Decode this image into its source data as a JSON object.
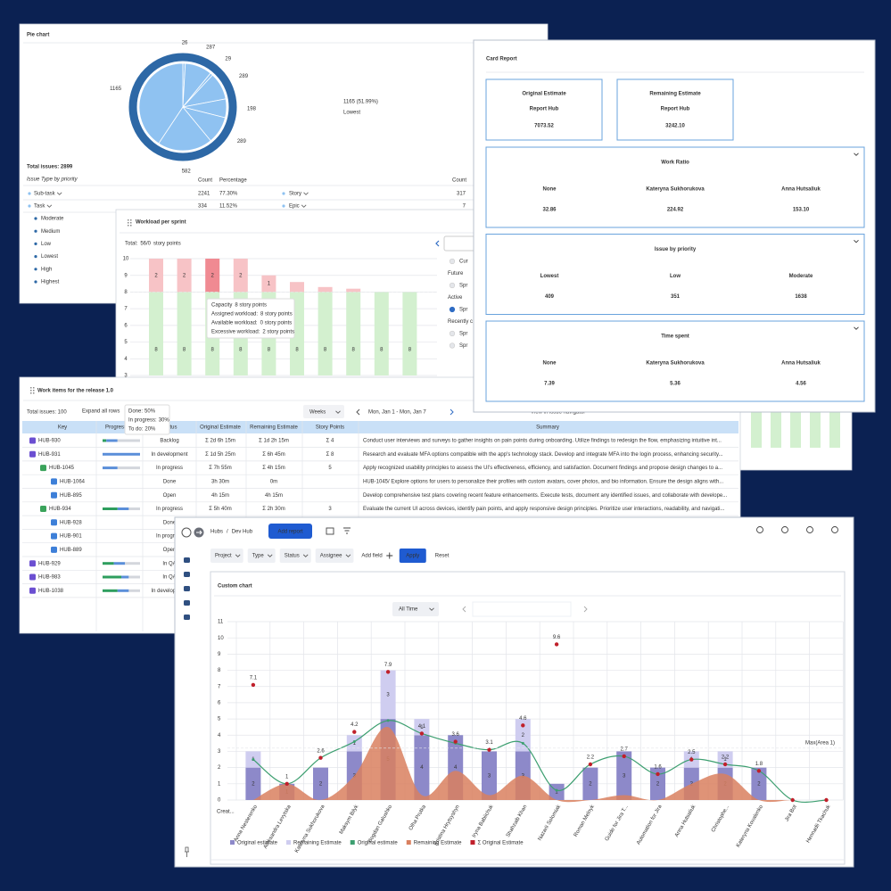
{
  "chart_data": [
    {
      "type": "pie",
      "title": "Pie chart",
      "values": [
        26,
        287,
        29,
        289,
        198,
        289,
        582,
        1165
      ],
      "color": "#8fc2f1",
      "ring_color": "#2d68a6",
      "label_color": "#3a6fb0",
      "highlight": {
        "label": "1165 (51.99%)",
        "name": "Lowest"
      }
    },
    {
      "type": "bar",
      "title": "Workload per sprint",
      "subtitle": [
        "Total:",
        "56/0",
        "story points"
      ],
      "categories": [
        null,
        null,
        null,
        null,
        null,
        null,
        null,
        null,
        null,
        null
      ],
      "series": [
        {
          "name": "Assigned workload",
          "color": "#d3f0cf",
          "label_color": "#5aa65a",
          "values": [
            8,
            8,
            8,
            8,
            8,
            8,
            8,
            8,
            8,
            8
          ]
        },
        {
          "name": "Excessive workload",
          "color": "#f7c3c6",
          "label_color": "#c0555d",
          "values": [
            2,
            2,
            2,
            2,
            1,
            0.6,
            0.3,
            0.2,
            0,
            0
          ]
        }
      ],
      "selected": 2,
      "selected_color": "#f08a92",
      "ylim": [
        3,
        10
      ],
      "yticks": [
        3,
        4,
        5,
        6,
        7,
        8,
        9,
        10
      ],
      "capacity": 8
    },
    {
      "type": "combo",
      "title": "Custom chart",
      "categories": [
        "Anna Nesterenko",
        "Aleksandra Levytska",
        "Kateryna Sukhorukova",
        "Maksym Bilyk",
        "Bogdan Galushko",
        "Olha Prutka",
        "Kristina Hrytsyshyn",
        "Iryna Babiichuk",
        "Shahzaib Khan",
        "Nazarii Solomiak",
        "Roman Melnyk",
        "Guide for Jira T...",
        "Automation for Jira",
        "Anna Hutsaliuk",
        "Christophe...",
        "Kateryna Kovalenko",
        "Jira Bot",
        "Hennadii Tkachuk"
      ],
      "xlabel": "Creat...",
      "ylim": [
        0,
        11
      ],
      "yticks": [
        0,
        1,
        2,
        3,
        4,
        5,
        6,
        7,
        8,
        9,
        10,
        11
      ],
      "grid": true,
      "max_line": {
        "value": 3.2,
        "label": "Max(Area 1)",
        "color": "#8fd3d8"
      },
      "series": [
        {
          "name": "Original estimate",
          "kind": "bar",
          "color": "#8d89c9",
          "values": [
            2,
            1,
            2,
            3,
            5,
            4,
            4,
            3,
            3,
            1,
            2,
            3,
            2,
            2,
            2,
            2,
            0,
            0
          ]
        },
        {
          "name": "Remaining Estimate",
          "kind": "bar",
          "color": "#cfcdf0",
          "values": [
            1,
            0,
            0,
            1,
            3,
            1,
            0,
            0,
            2,
            0,
            0,
            0,
            0,
            1,
            1,
            0,
            0,
            0
          ]
        },
        {
          "name": "Original estimate",
          "kind": "line",
          "color": "#3d9f70",
          "values": [
            2.5,
            1,
            2.6,
            3.6,
            4.9,
            4.1,
            3.5,
            3.1,
            3.5,
            0.6,
            2.2,
            2.7,
            1.6,
            2.5,
            2.2,
            1.8,
            0,
            0
          ]
        },
        {
          "name": "Remaining Estimate",
          "kind": "area",
          "color": "#d9805f",
          "values": [
            0,
            1,
            0,
            1.5,
            4.5,
            0.3,
            1.8,
            0.3,
            1.5,
            0,
            0,
            0.3,
            0,
            1,
            1.6,
            0,
            0,
            0
          ]
        },
        {
          "name": "Σ Original Estimate",
          "kind": "dots",
          "color": "#c0202b",
          "values": [
            7.1,
            1,
            2.6,
            4.2,
            7.9,
            4.1,
            3.6,
            3.1,
            4.6,
            9.6,
            2.2,
            2.7,
            1.6,
            2.5,
            2.2,
            1.8,
            0,
            0
          ]
        }
      ]
    }
  ],
  "pie_panel": {
    "total": "Total issues: 2899",
    "subtitle": "Issue Type by priority",
    "columns": [
      "Count",
      "Percentage"
    ],
    "right_columns": [
      "Count"
    ],
    "rows": [
      {
        "name": "Sub-task",
        "count": "2241",
        "pct": "77.30%"
      },
      {
        "name": "Task",
        "count": "334",
        "pct": "11.52%"
      }
    ],
    "right_rows": [
      {
        "name": "Story",
        "count": "317"
      },
      {
        "name": "Epic",
        "count": "7"
      }
    ],
    "priorities": [
      "Moderate",
      "Medium",
      "Low",
      "Lowest",
      "High",
      "Highest"
    ]
  },
  "workload_panel": {
    "sidebar": [
      {
        "text": "Cur",
        "radio": true
      },
      {
        "text": "Future"
      },
      {
        "text": "Spr",
        "radio": true
      },
      {
        "text": "Active"
      },
      {
        "text": "Spr",
        "radio": true,
        "checked": true
      },
      {
        "text": "Recently c"
      },
      {
        "text": "Spr",
        "radio": true
      },
      {
        "text": "Spr",
        "radio": true
      }
    ],
    "tooltip": [
      {
        "label": "Capacity",
        "value": "8 story points",
        "color": "#2f6cc4"
      },
      {
        "label": "Assigned workload:",
        "value": "8 story points",
        "color": "#2e9e5e"
      },
      {
        "label": "Available workload:",
        "value": "0 story points",
        "color": "#888888"
      },
      {
        "label": "Excessive workload:",
        "value": "2 story points",
        "color": "#e58a90"
      }
    ]
  },
  "card_report": {
    "title": "Card Report",
    "estimates": [
      {
        "title": "Original Estimate",
        "sub": "Report Hub",
        "value": "7073.52"
      },
      {
        "title": "Remaining Estimate",
        "sub": "Report Hub",
        "value": "3242.10"
      }
    ],
    "sections": [
      {
        "title": "Work Ratio",
        "items": [
          {
            "label": "None",
            "value": "32.86"
          },
          {
            "label": "Kateryna Sukhorukova",
            "value": "224.92"
          },
          {
            "label": "Anna Hutsaliuk",
            "value": "153.10"
          }
        ]
      },
      {
        "title": "Issue by priority",
        "items": [
          {
            "label": "Lowest",
            "value": "409"
          },
          {
            "label": "Low",
            "value": "351"
          },
          {
            "label": "Moderate",
            "value": "1638"
          }
        ]
      },
      {
        "title": "Time spent",
        "items": [
          {
            "label": "None",
            "value": "7.39"
          },
          {
            "label": "Kateryna Sukhorukova",
            "value": "5.36"
          },
          {
            "label": "Anna Hutsaliuk",
            "value": "4.56"
          }
        ]
      }
    ]
  },
  "work_items": {
    "title": "Work items for the release 1.0",
    "total": "Total issues: 100",
    "expand": "Expand all rows",
    "period": "Weeks",
    "range": "Mon, Jan 1 - Mon, Jan 7",
    "navigator": "View in issue navigator",
    "progress_tooltip": [
      {
        "label": "Done:",
        "value": "50%",
        "color": "#2e9e5e"
      },
      {
        "label": "In progress:",
        "value": "30%",
        "color": "#2f6cc4"
      },
      {
        "label": "To do:",
        "value": "20%",
        "color": "#888888"
      }
    ],
    "progress_colors": [
      "#2e9e5e",
      "#5b8fd9",
      "#d3d6dc"
    ],
    "headers": [
      "Key",
      "Progress",
      "Status",
      "Original Estimate",
      "Remaining Estimate",
      "Story Points",
      "Summary"
    ],
    "rows": [
      {
        "key": "HUB-930",
        "level": 0,
        "icon": "#6b4fd1",
        "progress": [
          10,
          30,
          60
        ],
        "status": "Backlog",
        "status_color": "#444444",
        "orig": "Σ 2d 6h 15m",
        "rem": "Σ 1d 2h 15m",
        "sp": "Σ 4",
        "summary": "Conduct user interviews and surveys to gather insights on pain points during onboarding. Utilize findings to redesign the flow, emphasizing intuitive int..."
      },
      {
        "key": "HUB-931",
        "level": 0,
        "icon": "#6b4fd1",
        "progress": [
          0,
          100,
          0
        ],
        "status": "In development",
        "status_color": "#2f6cc4",
        "orig": "Σ 1d 5h 25m",
        "rem": "Σ 6h 45m",
        "sp": "Σ 8",
        "summary": "Research and evaluate MFA options compatible with the app's technology stack. Develop and integrate MFA into the login process, enhancing security..."
      },
      {
        "key": "HUB-1045",
        "level": 1,
        "icon": "#3aa35b",
        "progress": [
          0,
          40,
          60
        ],
        "status": "In progress",
        "status_color": "#2f6cc4",
        "orig": "Σ 7h 55m",
        "rem": "Σ 4h 15m",
        "sp": "5",
        "summary": "Apply recognized usability principles to assess the UI's effectiveness, efficiency, and satisfaction. Document findings and propose design changes to a..."
      },
      {
        "key": "HUB-1064",
        "level": 2,
        "icon": "#3d7fd8",
        "status": "Done",
        "status_color": "#2e9e5e",
        "orig": "3h 30m",
        "rem": "0m",
        "summary": "HUB-1045/ Explore options for users to personalize their profiles with custom avatars, cover photos, and bio information. Ensure the design aligns with..."
      },
      {
        "key": "HUB-895",
        "level": 2,
        "icon": "#3d7fd8",
        "status": "Open",
        "status_color": "#444444",
        "orig": "4h 15m",
        "rem": "4h 15m",
        "summary": "Develop comprehensive test plans covering recent feature enhancements. Execute tests, document any identified issues, and collaborate with develope..."
      },
      {
        "key": "HUB-934",
        "level": 1,
        "icon": "#3aa35b",
        "progress": [
          40,
          30,
          30
        ],
        "status": "In progress",
        "status_color": "#2f6cc4",
        "orig": "Σ 5h 40m",
        "rem": "Σ 2h 30m",
        "sp": "3",
        "summary": "Evaluate the current UI across devices, identify pain points, and apply responsive design principles. Prioritize user interactions, readability, and navigati..."
      },
      {
        "key": "HUB-928",
        "level": 2,
        "icon": "#3d7fd8",
        "status": "Done",
        "status_color": "#2e9e5e"
      },
      {
        "key": "HUB-901",
        "level": 2,
        "icon": "#3d7fd8",
        "status": "In progress",
        "status_color": "#2f6cc4"
      },
      {
        "key": "HUB-889",
        "level": 2,
        "icon": "#3d7fd8",
        "status": "Open",
        "status_color": "#444444"
      },
      {
        "key": "HUB-929",
        "level": 0,
        "icon": "#6b4fd1",
        "progress": [
          30,
          30,
          40
        ],
        "status": "In QA",
        "status_color": "#2f6cc4"
      },
      {
        "key": "HUB-983",
        "level": 0,
        "icon": "#6b4fd1",
        "progress": [
          50,
          20,
          30
        ],
        "status": "In QA",
        "status_color": "#2f6cc4"
      },
      {
        "key": "HUB-1038",
        "level": 0,
        "icon": "#6b4fd1",
        "progress": [
          40,
          30,
          30
        ],
        "status": "In development",
        "status_color": "#2f6cc4"
      }
    ]
  },
  "custom_panel": {
    "breadcrumb": [
      "Hubs",
      "/",
      "Dev Hub"
    ],
    "add_report": "Add report",
    "filters": [
      "Project",
      "Type",
      "Status",
      "Assignee"
    ],
    "add_field": "Add field",
    "apply": "Apply",
    "reset": "Reset",
    "range": "All Time"
  }
}
